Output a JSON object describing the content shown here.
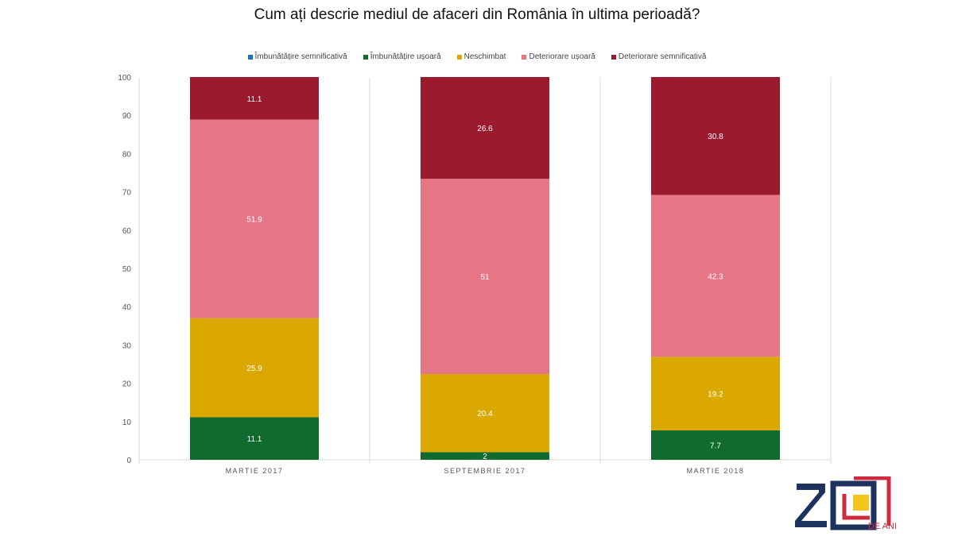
{
  "chart_data": {
    "type": "bar",
    "stacked": true,
    "title": "Cum ați descrie mediul de afaceri din România în ultima perioadă?",
    "categories": [
      "MARTIE 2017",
      "SEPTEMBRIE 2017",
      "MARTIE 2018"
    ],
    "series": [
      {
        "name": "Îmbunătățire semnificativă",
        "color": "#1f6fb5",
        "values": [
          0,
          0,
          0
        ],
        "labels": [
          "",
          "",
          ""
        ]
      },
      {
        "name": "Îmbunătățire ușoară",
        "color": "#116b2e",
        "values": [
          11.1,
          2,
          7.7
        ],
        "labels": [
          "11.1",
          "2",
          "7.7"
        ]
      },
      {
        "name": "Neschimbat",
        "color": "#dba800",
        "values": [
          25.9,
          20.4,
          19.2
        ],
        "labels": [
          "25.9",
          "20.4",
          "19.2"
        ]
      },
      {
        "name": "Deteriorare ușoară",
        "color": "#e67585",
        "values": [
          51.9,
          51,
          42.3
        ],
        "labels": [
          "51.9",
          "51",
          "42.3"
        ]
      },
      {
        "name": "Deteriorare semnificativă",
        "color": "#9b1a2e",
        "values": [
          11.1,
          26.6,
          30.8
        ],
        "labels": [
          "11.1",
          "26.6",
          "30.8"
        ]
      }
    ],
    "ylim": [
      0,
      100
    ],
    "yticks": [
      0,
      10,
      20,
      30,
      40,
      50,
      60,
      70,
      80,
      90,
      100
    ],
    "legend_position": "top",
    "grid": "vertical category separators"
  },
  "logo": {
    "text": "20",
    "subtext": "DE ANI"
  }
}
